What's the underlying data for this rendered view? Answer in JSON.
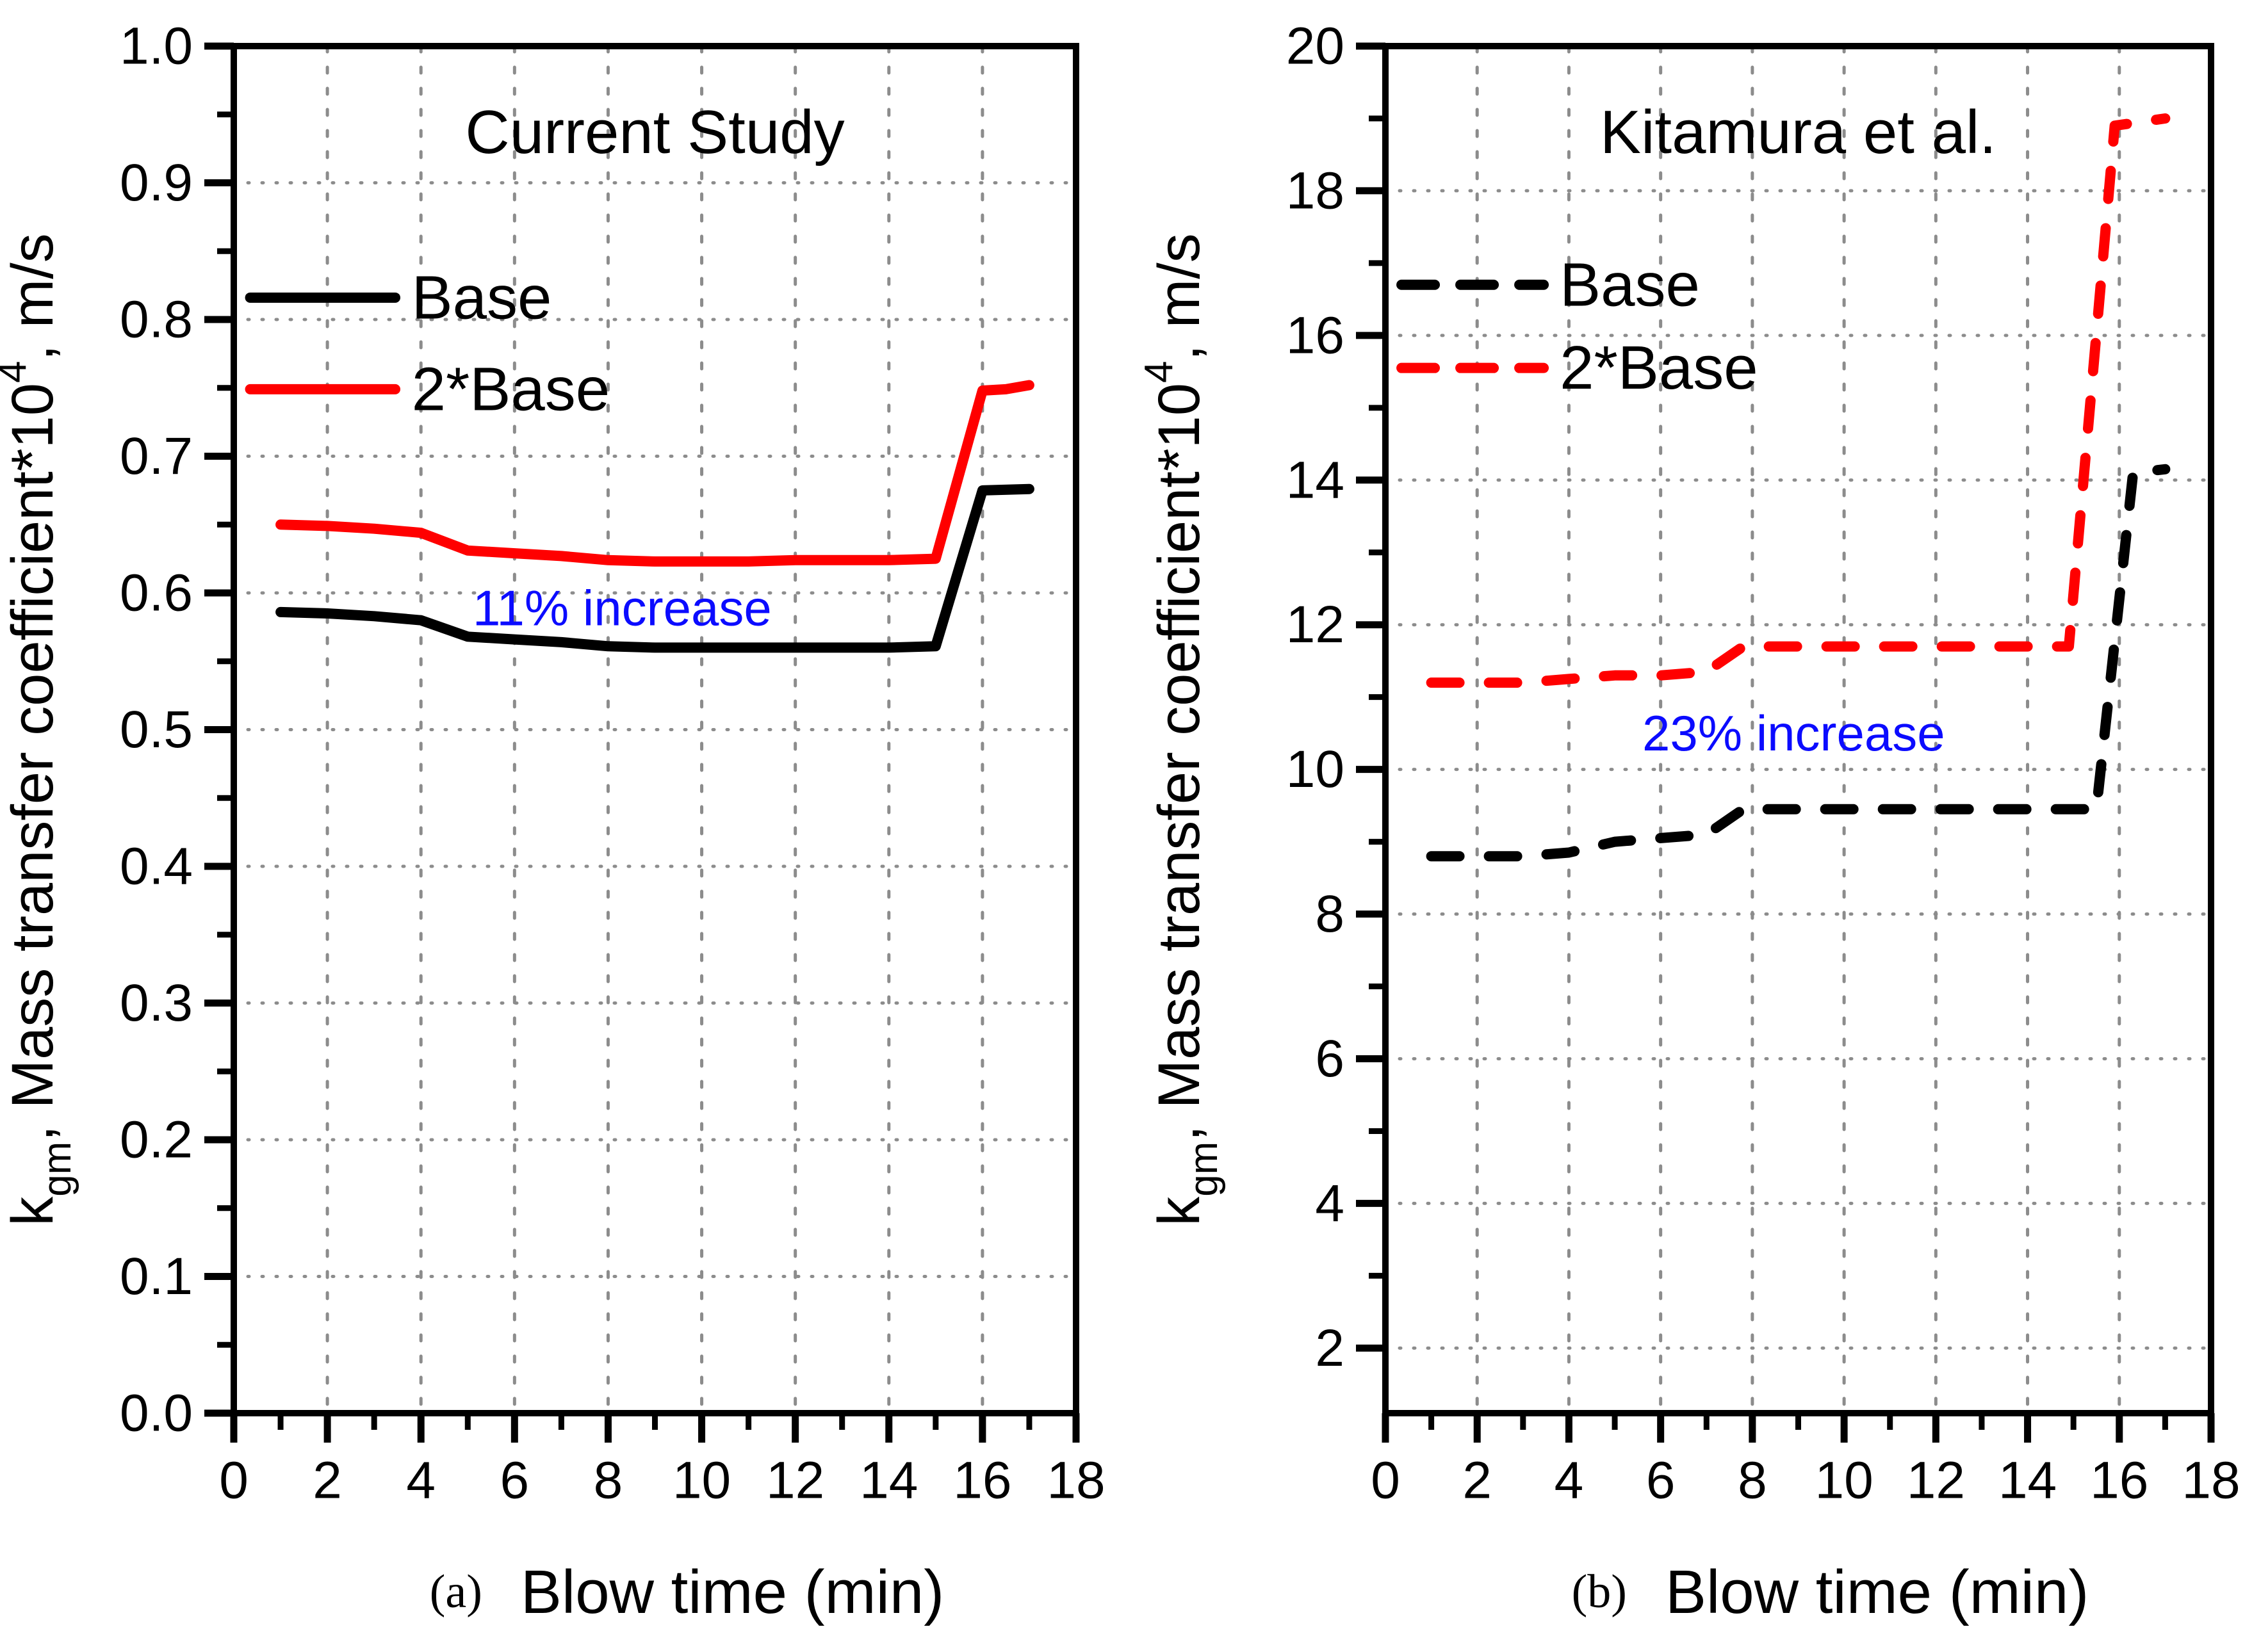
{
  "figure": {
    "background": "#ffffff",
    "line_black": "#000000",
    "line_red": "#ff0000",
    "annotation_blue": "#0b0bff",
    "grid_color": "#8c8c8c"
  },
  "chart_data": [
    {
      "panel": "a",
      "type": "line",
      "title": "Current Study",
      "caption_prefix": "(a)",
      "xlabel": "Blow time (min)",
      "ylabel": {
        "pre": "k",
        "sub": "gm",
        "mid": ", Mass transfer coefficient*10",
        "sup": "4",
        "post": ", m/s"
      },
      "xlim": [
        0,
        18
      ],
      "ylim": [
        0,
        1.0
      ],
      "xticks": [
        0,
        2,
        4,
        6,
        8,
        10,
        12,
        14,
        16,
        18
      ],
      "xtick_labels": [
        "0",
        "2",
        "4",
        "6",
        "8",
        "10",
        "12",
        "14",
        "16",
        "18"
      ],
      "yticks": [
        0,
        0.1,
        0.2,
        0.3,
        0.4,
        0.5,
        0.6,
        0.7,
        0.8,
        0.9,
        1.0
      ],
      "ytick_labels": [
        "0.0",
        "0.1",
        "0.2",
        "0.3",
        "0.4",
        "0.5",
        "0.6",
        "0.7",
        "0.8",
        "0.9",
        "1.0"
      ],
      "style": "solid",
      "title_y": 0.937,
      "legend_y": [
        0.816,
        0.749
      ],
      "annotation": {
        "text": "11% increase",
        "x": 8.3,
        "y": 0.589
      },
      "legend": [
        {
          "label": "Base",
          "color": "#000000"
        },
        {
          "label": "2*Base",
          "color": "#ff0000"
        }
      ],
      "series": [
        {
          "name": "Base",
          "color": "#000000",
          "points": [
            [
              1,
              0.586
            ],
            [
              2,
              0.585
            ],
            [
              3,
              0.583
            ],
            [
              4,
              0.58
            ],
            [
              5,
              0.568
            ],
            [
              6,
              0.566
            ],
            [
              7,
              0.564
            ],
            [
              8,
              0.561
            ],
            [
              9,
              0.56
            ],
            [
              10,
              0.56
            ],
            [
              11,
              0.56
            ],
            [
              12,
              0.56
            ],
            [
              13,
              0.56
            ],
            [
              14,
              0.56
            ],
            [
              15,
              0.561
            ],
            [
              16,
              0.675
            ],
            [
              17,
              0.676
            ]
          ]
        },
        {
          "name": "2*Base",
          "color": "#ff0000",
          "points": [
            [
              1,
              0.65
            ],
            [
              2,
              0.649
            ],
            [
              3,
              0.647
            ],
            [
              4,
              0.644
            ],
            [
              5,
              0.631
            ],
            [
              6,
              0.629
            ],
            [
              7,
              0.627
            ],
            [
              8,
              0.624
            ],
            [
              9,
              0.623
            ],
            [
              10,
              0.623
            ],
            [
              11,
              0.623
            ],
            [
              12,
              0.624
            ],
            [
              13,
              0.624
            ],
            [
              14,
              0.624
            ],
            [
              15,
              0.625
            ],
            [
              16,
              0.748
            ],
            [
              16.5,
              0.749
            ],
            [
              17,
              0.752
            ]
          ]
        }
      ]
    },
    {
      "panel": "b",
      "type": "line",
      "title": "Kitamura et al.",
      "caption_prefix": "(b)",
      "xlabel": "Blow time (min)",
      "ylabel": {
        "pre": "k",
        "sub": "gm",
        "mid": ", Mass transfer coefficient*10",
        "sup": "4",
        "post": ", m/s"
      },
      "xlim": [
        0,
        18
      ],
      "ylim": [
        1.1,
        20
      ],
      "xticks": [
        0,
        2,
        4,
        6,
        8,
        10,
        12,
        14,
        16,
        18
      ],
      "xtick_labels": [
        "0",
        "2",
        "4",
        "6",
        "8",
        "10",
        "12",
        "14",
        "16",
        "18"
      ],
      "yticks": [
        2,
        4,
        6,
        8,
        10,
        12,
        14,
        16,
        18,
        20
      ],
      "ytick_labels": [
        "2",
        "4",
        "6",
        "8",
        "10",
        "12",
        "14",
        "16",
        "18",
        "20"
      ],
      "style": "dashed",
      "title_y": 18.81,
      "legend_y": [
        16.7,
        15.55
      ],
      "annotation": {
        "text": "23% increase",
        "x": 8.9,
        "y": 10.5
      },
      "legend": [
        {
          "label": "Base",
          "color": "#000000"
        },
        {
          "label": "2*Base",
          "color": "#ff0000"
        }
      ],
      "series": [
        {
          "name": "Base",
          "color": "#000000",
          "points": [
            [
              1,
              8.8
            ],
            [
              2,
              8.8
            ],
            [
              3,
              8.8
            ],
            [
              4,
              8.85
            ],
            [
              5,
              9.0
            ],
            [
              6,
              9.05
            ],
            [
              7,
              9.1
            ],
            [
              7.8,
              9.45
            ],
            [
              9,
              9.45
            ],
            [
              10,
              9.45
            ],
            [
              11,
              9.45
            ],
            [
              12,
              9.45
            ],
            [
              13,
              9.45
            ],
            [
              14,
              9.45
            ],
            [
              15.5,
              9.45
            ],
            [
              16.3,
              14.1
            ],
            [
              17,
              14.15
            ]
          ]
        },
        {
          "name": "2*Base",
          "color": "#ff0000",
          "points": [
            [
              1,
              11.2
            ],
            [
              2,
              11.2
            ],
            [
              3,
              11.2
            ],
            [
              4,
              11.25
            ],
            [
              5,
              11.3
            ],
            [
              6,
              11.3
            ],
            [
              7,
              11.35
            ],
            [
              7.8,
              11.7
            ],
            [
              9,
              11.7
            ],
            [
              10,
              11.7
            ],
            [
              11,
              11.7
            ],
            [
              12,
              11.7
            ],
            [
              13,
              11.7
            ],
            [
              14,
              11.7
            ],
            [
              14.9,
              11.7
            ],
            [
              15.9,
              18.9
            ],
            [
              17,
              19.0
            ]
          ]
        }
      ]
    }
  ]
}
